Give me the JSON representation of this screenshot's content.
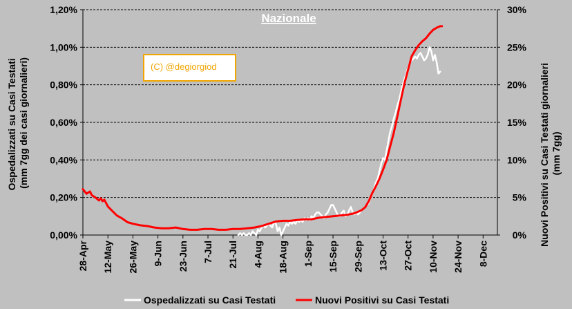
{
  "chart_data": {
    "type": "line",
    "title": "Nazionale",
    "ylabel_left": "Ospedalizzati su Casi Testati (mm 7gg dei casi giornalieri)",
    "ylabel_left_lines": [
      "Ospedalizzati su Casi Testati",
      "(mm 7gg dei casi giornalieri)"
    ],
    "ylabel_right": "Nuovi Positivi su Casi Testati giornalieri (mm 7gg)",
    "ylabel_right_lines": [
      "Nuovi Positivi su Casi Testati giornalieri",
      "(mm 7gg)"
    ],
    "ylim_left": [
      0,
      1.2
    ],
    "ylim_right": [
      0,
      30
    ],
    "left_ticks": [
      "0,00%",
      "0,20%",
      "0,40%",
      "0,60%",
      "0,80%",
      "1,00%",
      "1,20%"
    ],
    "right_ticks": [
      "0%",
      "5%",
      "10%",
      "15%",
      "20%",
      "25%",
      "30%"
    ],
    "x_tick_labels": [
      "28-Apr",
      "12-May",
      "26-May",
      "9-Jun",
      "23-Jun",
      "7-Jul",
      "21-Jul",
      "4-Aug",
      "18-Aug",
      "1-Sep",
      "15-Sep",
      "29-Sep",
      "13-Oct",
      "27-Oct",
      "10-Nov",
      "24-Nov",
      "8-Dec"
    ],
    "x_tick_days": [
      0,
      14,
      28,
      42,
      56,
      70,
      84,
      98,
      112,
      126,
      140,
      154,
      168,
      182,
      196,
      210,
      224
    ],
    "xlim_days": [
      0,
      232
    ],
    "grid": "horizontal-dashed",
    "legend_position": "bottom",
    "watermark": "(C) @degiorgiod",
    "series": [
      {
        "name": "Ospedalizzati su Casi Testati",
        "axis": "left",
        "color": "#ffffff",
        "x_days": [
          87,
          88,
          89,
          90,
          91,
          92,
          93,
          94,
          95,
          96,
          97,
          98,
          99,
          100,
          101,
          102,
          103,
          104,
          105,
          106,
          107,
          108,
          109,
          110,
          111,
          112,
          113,
          114,
          115,
          116,
          117,
          118,
          119,
          120,
          121,
          122,
          123,
          124,
          125,
          126,
          127,
          128,
          129,
          130,
          131,
          132,
          133,
          134,
          135,
          136,
          137,
          138,
          139,
          140,
          141,
          142,
          143,
          144,
          145,
          146,
          147,
          148,
          149,
          150,
          151,
          152,
          153,
          154,
          155,
          156,
          157,
          158,
          159,
          160,
          161,
          162,
          163,
          164,
          165,
          166,
          167,
          168,
          169,
          170,
          171,
          172,
          173,
          174,
          175,
          176,
          177,
          178,
          179,
          180,
          181,
          182,
          183,
          184,
          185,
          186,
          187,
          188,
          189,
          190,
          191,
          192,
          193,
          194,
          195,
          196,
          197,
          198,
          199,
          200
        ],
        "values": [
          0.0,
          0.01,
          0.0,
          0.01,
          0.0,
          0.0,
          0.01,
          0.0,
          0.02,
          0.01,
          0.0,
          0.03,
          0.02,
          0.04,
          0.05,
          0.04,
          0.05,
          0.06,
          0.05,
          0.04,
          0.07,
          0.06,
          0.02,
          0.04,
          0.0,
          0.02,
          0.04,
          0.06,
          0.05,
          0.07,
          0.06,
          0.07,
          0.06,
          0.08,
          0.07,
          0.08,
          0.07,
          0.09,
          0.08,
          0.09,
          0.08,
          0.1,
          0.09,
          0.11,
          0.12,
          0.12,
          0.11,
          0.1,
          0.09,
          0.11,
          0.12,
          0.14,
          0.16,
          0.16,
          0.14,
          0.12,
          0.1,
          0.1,
          0.12,
          0.13,
          0.1,
          0.11,
          0.13,
          0.15,
          0.12,
          0.11,
          0.12,
          0.11,
          0.12,
          0.13,
          0.14,
          0.15,
          0.16,
          0.17,
          0.2,
          0.22,
          0.25,
          0.28,
          0.3,
          0.34,
          0.38,
          0.41,
          0.4,
          0.45,
          0.5,
          0.55,
          0.58,
          0.62,
          0.65,
          0.69,
          0.72,
          0.76,
          0.8,
          0.83,
          0.86,
          0.89,
          0.92,
          0.93,
          0.94,
          0.95,
          0.94,
          0.96,
          0.97,
          0.95,
          0.93,
          0.94,
          0.96,
          1.0,
          0.98,
          0.93,
          0.96,
          0.92,
          0.86,
          0.87
        ]
      },
      {
        "name": "Nuovi Positivi su Casi Testati",
        "axis": "right",
        "color": "#ff0000",
        "x_days": [
          0,
          2,
          4,
          5,
          7,
          9,
          10,
          11,
          12,
          14,
          16,
          19,
          22,
          25,
          28,
          32,
          36,
          40,
          44,
          48,
          52,
          56,
          60,
          64,
          68,
          72,
          76,
          80,
          84,
          88,
          92,
          96,
          100,
          104,
          108,
          112,
          116,
          120,
          124,
          128,
          132,
          136,
          140,
          144,
          148,
          152,
          156,
          158,
          160,
          162,
          164,
          166,
          168,
          170,
          172,
          174,
          176,
          178,
          180,
          182,
          184,
          186,
          188,
          190,
          192,
          194,
          196,
          198,
          200,
          201
        ],
        "values": [
          6.1,
          5.5,
          5.8,
          5.3,
          5.0,
          4.6,
          4.9,
          4.5,
          4.7,
          3.8,
          3.3,
          2.6,
          2.2,
          1.7,
          1.5,
          1.3,
          1.2,
          1.0,
          0.9,
          0.9,
          1.0,
          0.8,
          0.7,
          0.7,
          0.8,
          0.8,
          0.7,
          0.7,
          0.8,
          0.8,
          0.9,
          1.0,
          1.2,
          1.5,
          1.8,
          1.9,
          1.9,
          2.0,
          2.1,
          2.1,
          2.3,
          2.4,
          2.5,
          2.6,
          2.7,
          2.9,
          3.3,
          3.7,
          4.5,
          5.6,
          6.5,
          7.5,
          8.7,
          10.0,
          11.8,
          13.6,
          15.8,
          18.0,
          20.2,
          22.0,
          23.8,
          24.6,
          25.3,
          25.8,
          26.2,
          26.8,
          27.3,
          27.6,
          27.8,
          27.8
        ]
      }
    ]
  }
}
